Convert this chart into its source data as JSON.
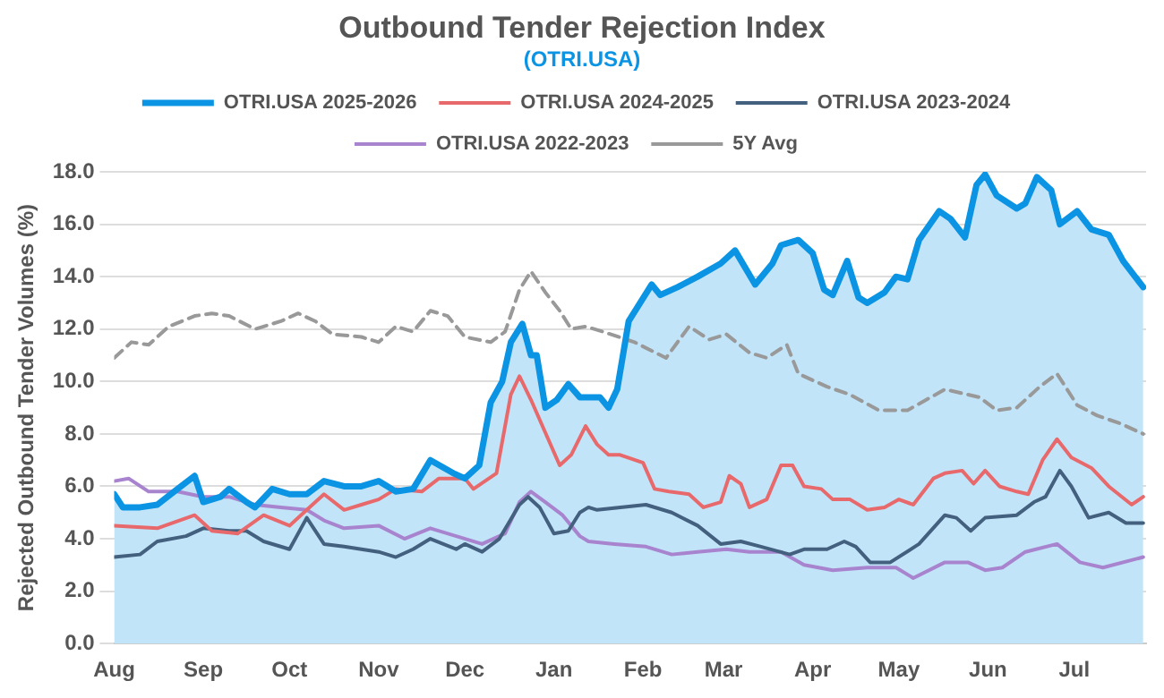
{
  "chart_data": {
    "type": "line",
    "title": "Outbound Tender Rejection Index",
    "subtitle": "(OTRI.USA)",
    "ylabel": "Rejected Outbound Tender Volumes (%)",
    "xlim": [
      "2025-08-01",
      "2026-07-26"
    ],
    "xticks": [
      {
        "value": "2025-08-01",
        "label": "Aug"
      },
      {
        "value": "2025-09-01",
        "label": "Sep"
      },
      {
        "value": "2025-10-01",
        "label": "Oct"
      },
      {
        "value": "2025-11-01",
        "label": "Nov"
      },
      {
        "value": "2025-12-01",
        "label": "Dec"
      },
      {
        "value": "2026-01-01",
        "label": "Jan"
      },
      {
        "value": "2026-02-01",
        "label": "Feb"
      },
      {
        "value": "2026-03-01",
        "label": "Mar"
      },
      {
        "value": "2026-04-01",
        "label": "Apr"
      },
      {
        "value": "2026-05-01",
        "label": "May"
      },
      {
        "value": "2026-06-01",
        "label": "Jun"
      },
      {
        "value": "2026-07-01",
        "label": "Jul"
      }
    ],
    "ylim": [
      0,
      18
    ],
    "yticks": [
      {
        "value": 0,
        "label": "0.0"
      },
      {
        "value": 2,
        "label": "2.0"
      },
      {
        "value": 4,
        "label": "4.0"
      },
      {
        "value": 6,
        "label": "6.0"
      },
      {
        "value": 8,
        "label": "8.0"
      },
      {
        "value": 10,
        "label": "10.0"
      },
      {
        "value": 12,
        "label": "12.0"
      },
      {
        "value": 14,
        "label": "14.0"
      },
      {
        "value": 16,
        "label": "16.0"
      },
      {
        "value": 18,
        "label": "18.0"
      }
    ],
    "grid": "y",
    "legend": "top",
    "marker": "none",
    "series": [
      {
        "name": "OTRI.USA 2025-2026",
        "type": "area",
        "color": "#0a94e3",
        "x": [
          "2025-08-01",
          "2025-08-04",
          "2025-08-10",
          "2025-08-16",
          "2025-08-23",
          "2025-08-29",
          "2025-09-01",
          "2025-09-07",
          "2025-09-10",
          "2025-09-16",
          "2025-09-19",
          "2025-09-25",
          "2025-10-01",
          "2025-10-07",
          "2025-10-13",
          "2025-10-20",
          "2025-10-26",
          "2025-11-01",
          "2025-11-07",
          "2025-11-13",
          "2025-11-19",
          "2025-11-27",
          "2025-12-01",
          "2025-12-06",
          "2025-12-10",
          "2025-12-14",
          "2025-12-17",
          "2025-12-21",
          "2025-12-24",
          "2025-12-26",
          "2025-12-29",
          "2026-01-02",
          "2026-01-06",
          "2026-01-10",
          "2026-01-17",
          "2026-01-20",
          "2026-01-23",
          "2026-01-27",
          "2026-02-04",
          "2026-02-07",
          "2026-02-13",
          "2026-02-20",
          "2026-02-28",
          "2026-03-05",
          "2026-03-12",
          "2026-03-18",
          "2026-03-21",
          "2026-03-27",
          "2026-04-01",
          "2026-04-05",
          "2026-04-08",
          "2026-04-13",
          "2026-04-17",
          "2026-04-20",
          "2026-04-26",
          "2026-04-30",
          "2026-05-04",
          "2026-05-08",
          "2026-05-15",
          "2026-05-19",
          "2026-05-24",
          "2026-05-28",
          "2026-05-31",
          "2026-06-04",
          "2026-06-11",
          "2026-06-14",
          "2026-06-18",
          "2026-06-23",
          "2026-06-26",
          "2026-07-02",
          "2026-07-07",
          "2026-07-13",
          "2026-07-18",
          "2026-07-25"
        ],
        "values": [
          5.7,
          5.2,
          5.2,
          5.3,
          5.9,
          6.4,
          5.4,
          5.6,
          5.9,
          5.4,
          5.2,
          5.9,
          5.7,
          5.7,
          6.2,
          6.0,
          6.0,
          6.2,
          5.8,
          5.9,
          7.0,
          6.5,
          6.3,
          6.8,
          9.2,
          10.0,
          11.5,
          12.2,
          11.0,
          11.0,
          9.0,
          9.3,
          9.9,
          9.4,
          9.4,
          9.0,
          9.7,
          12.3,
          13.7,
          13.3,
          13.6,
          14.0,
          14.5,
          15.0,
          13.7,
          14.5,
          15.2,
          15.4,
          14.9,
          13.5,
          13.3,
          14.6,
          13.2,
          13.0,
          13.4,
          14.0,
          13.9,
          15.4,
          16.5,
          16.2,
          15.5,
          17.5,
          17.9,
          17.1,
          16.6,
          16.8,
          17.8,
          17.3,
          16.0,
          16.5,
          15.8,
          15.6,
          14.6,
          13.6
        ]
      },
      {
        "name": "OTRI.USA 2024-2025",
        "color": "#e8696b",
        "x": [
          "2025-08-01",
          "2025-08-16",
          "2025-08-29",
          "2025-09-04",
          "2025-09-13",
          "2025-09-22",
          "2025-10-01",
          "2025-10-07",
          "2025-10-13",
          "2025-10-20",
          "2025-10-26",
          "2025-11-01",
          "2025-11-07",
          "2025-11-16",
          "2025-11-22",
          "2025-12-01",
          "2025-12-04",
          "2025-12-12",
          "2025-12-17",
          "2025-12-20",
          "2025-12-24",
          "2025-12-30",
          "2026-01-03",
          "2026-01-07",
          "2026-01-12",
          "2026-01-16",
          "2026-01-20",
          "2026-01-24",
          "2026-02-01",
          "2026-02-05",
          "2026-02-10",
          "2026-02-17",
          "2026-02-22",
          "2026-02-28",
          "2026-03-03",
          "2026-03-07",
          "2026-03-10",
          "2026-03-16",
          "2026-03-21",
          "2026-03-25",
          "2026-03-29",
          "2026-04-04",
          "2026-04-08",
          "2026-04-14",
          "2026-04-20",
          "2026-04-26",
          "2026-05-01",
          "2026-05-06",
          "2026-05-13",
          "2026-05-17",
          "2026-05-23",
          "2026-05-27",
          "2026-05-31",
          "2026-06-05",
          "2026-06-11",
          "2026-06-15",
          "2026-06-20",
          "2026-06-25",
          "2026-06-30",
          "2026-07-07",
          "2026-07-13",
          "2026-07-21",
          "2026-07-25"
        ],
        "values": [
          4.5,
          4.4,
          4.9,
          4.3,
          4.2,
          4.9,
          4.5,
          5.1,
          5.7,
          5.1,
          5.3,
          5.5,
          5.9,
          5.8,
          6.3,
          6.3,
          5.9,
          6.5,
          9.5,
          10.2,
          9.3,
          7.8,
          6.8,
          7.2,
          8.3,
          7.6,
          7.2,
          7.2,
          6.9,
          5.9,
          5.8,
          5.7,
          5.2,
          5.4,
          6.4,
          6.1,
          5.2,
          5.5,
          6.8,
          6.8,
          6.0,
          5.9,
          5.5,
          5.5,
          5.1,
          5.2,
          5.5,
          5.3,
          6.3,
          6.5,
          6.6,
          6.1,
          6.6,
          6.0,
          5.8,
          5.7,
          7.0,
          7.8,
          7.1,
          6.7,
          6.0,
          5.3,
          5.6
        ]
      },
      {
        "name": "OTRI.USA 2023-2024",
        "color": "#44607f",
        "x": [
          "2025-08-01",
          "2025-08-10",
          "2025-08-16",
          "2025-08-26",
          "2025-09-01",
          "2025-09-10",
          "2025-09-16",
          "2025-09-22",
          "2025-10-01",
          "2025-10-07",
          "2025-10-13",
          "2025-10-20",
          "2025-10-26",
          "2025-11-01",
          "2025-11-07",
          "2025-11-13",
          "2025-11-19",
          "2025-11-28",
          "2025-12-01",
          "2025-12-07",
          "2025-12-13",
          "2025-12-20",
          "2025-12-23",
          "2025-12-27",
          "2026-01-01",
          "2026-01-06",
          "2026-01-10",
          "2026-01-13",
          "2026-01-16",
          "2026-02-02",
          "2026-02-11",
          "2026-02-20",
          "2026-02-28",
          "2026-03-07",
          "2026-03-14",
          "2026-03-24",
          "2026-03-29",
          "2026-04-06",
          "2026-04-12",
          "2026-04-16",
          "2026-04-21",
          "2026-04-28",
          "2026-05-08",
          "2026-05-17",
          "2026-05-21",
          "2026-05-26",
          "2026-05-31",
          "2026-06-11",
          "2026-06-17",
          "2026-06-21",
          "2026-06-26",
          "2026-06-30",
          "2026-07-06",
          "2026-07-13",
          "2026-07-19",
          "2026-07-25"
        ],
        "values": [
          3.3,
          3.4,
          3.9,
          4.1,
          4.4,
          4.3,
          4.3,
          3.9,
          3.6,
          4.8,
          3.8,
          3.7,
          3.6,
          3.5,
          3.3,
          3.6,
          4.0,
          3.6,
          3.8,
          3.5,
          4.0,
          5.3,
          5.6,
          5.2,
          4.2,
          4.3,
          5.0,
          5.2,
          5.1,
          5.3,
          5.0,
          4.5,
          3.8,
          3.9,
          3.7,
          3.4,
          3.6,
          3.6,
          3.9,
          3.7,
          3.1,
          3.1,
          3.8,
          4.9,
          4.8,
          4.3,
          4.8,
          4.9,
          5.4,
          5.6,
          6.6,
          6.0,
          4.8,
          5.0,
          4.6,
          4.6
        ]
      },
      {
        "name": "OTRI.USA 2022-2023",
        "color": "#a884cf",
        "x": [
          "2025-08-01",
          "2025-08-06",
          "2025-08-13",
          "2025-08-23",
          "2025-09-01",
          "2025-09-10",
          "2025-09-19",
          "2025-09-28",
          "2025-10-07",
          "2025-10-13",
          "2025-10-20",
          "2025-11-01",
          "2025-11-10",
          "2025-11-19",
          "2025-11-28",
          "2025-12-07",
          "2025-12-15",
          "2025-12-20",
          "2025-12-24",
          "2025-12-29",
          "2026-01-04",
          "2026-01-10",
          "2026-01-13",
          "2026-01-22",
          "2026-02-02",
          "2026-02-11",
          "2026-02-20",
          "2026-03-02",
          "2026-03-10",
          "2026-03-21",
          "2026-03-29",
          "2026-04-08",
          "2026-04-20",
          "2026-04-30",
          "2026-05-06",
          "2026-05-17",
          "2026-05-25",
          "2026-05-31",
          "2026-06-06",
          "2026-06-14",
          "2026-06-25",
          "2026-07-03",
          "2026-07-11",
          "2026-07-25"
        ],
        "values": [
          6.2,
          6.3,
          5.8,
          5.8,
          5.6,
          5.6,
          5.3,
          5.2,
          5.1,
          4.7,
          4.4,
          4.5,
          4.0,
          4.4,
          4.1,
          3.8,
          4.2,
          5.4,
          5.8,
          5.4,
          4.9,
          4.1,
          3.9,
          3.8,
          3.7,
          3.4,
          3.5,
          3.6,
          3.5,
          3.5,
          3.0,
          2.8,
          2.9,
          2.9,
          2.5,
          3.1,
          3.1,
          2.8,
          2.9,
          3.5,
          3.8,
          3.1,
          2.9,
          3.3
        ]
      },
      {
        "name": "5Y Avg",
        "color": "#999999",
        "line_style": "dashed",
        "x": [
          "2025-08-01",
          "2025-08-07",
          "2025-08-13",
          "2025-08-20",
          "2025-08-29",
          "2025-09-04",
          "2025-09-10",
          "2025-09-19",
          "2025-09-28",
          "2025-10-04",
          "2025-10-10",
          "2025-10-16",
          "2025-10-26",
          "2025-11-01",
          "2025-11-07",
          "2025-11-13",
          "2025-11-19",
          "2025-11-25",
          "2025-12-01",
          "2025-12-10",
          "2025-12-15",
          "2025-12-20",
          "2025-12-24",
          "2025-12-29",
          "2026-01-03",
          "2026-01-07",
          "2026-01-12",
          "2026-01-18",
          "2026-01-29",
          "2026-02-09",
          "2026-02-17",
          "2026-02-24",
          "2026-03-02",
          "2026-03-10",
          "2026-03-16",
          "2026-03-23",
          "2026-03-27",
          "2026-04-06",
          "2026-04-14",
          "2026-04-24",
          "2026-05-04",
          "2026-05-17",
          "2026-05-29",
          "2026-06-04",
          "2026-06-11",
          "2026-06-19",
          "2026-06-25",
          "2026-07-02",
          "2026-07-09",
          "2026-07-17",
          "2026-07-25"
        ],
        "values": [
          10.9,
          11.5,
          11.4,
          12.1,
          12.5,
          12.6,
          12.5,
          12.0,
          12.3,
          12.6,
          12.3,
          11.8,
          11.7,
          11.5,
          12.1,
          11.9,
          12.7,
          12.5,
          11.7,
          11.5,
          11.9,
          13.5,
          14.2,
          13.4,
          12.7,
          12.0,
          12.1,
          11.9,
          11.5,
          10.9,
          12.1,
          11.6,
          11.8,
          11.1,
          10.9,
          11.4,
          10.3,
          9.8,
          9.5,
          8.9,
          8.9,
          9.7,
          9.4,
          8.9,
          9.0,
          9.8,
          10.3,
          9.1,
          8.7,
          8.4,
          8.0
        ]
      }
    ]
  }
}
